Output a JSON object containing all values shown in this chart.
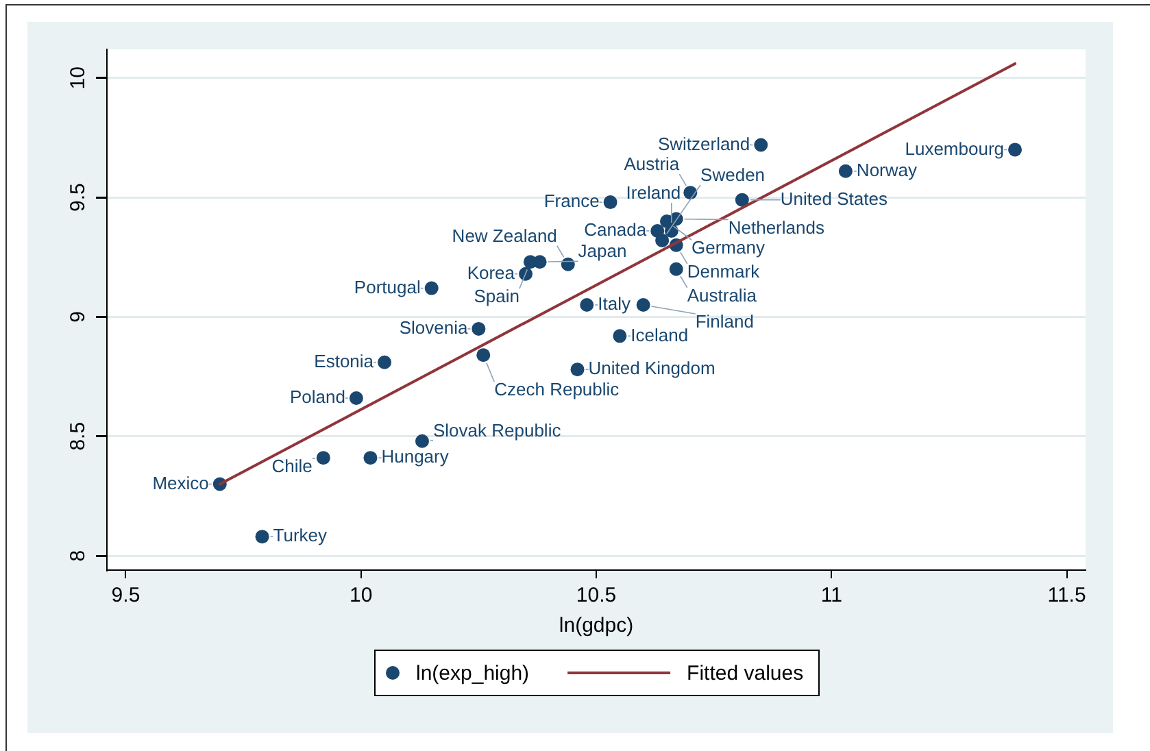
{
  "chart_data": {
    "type": "scatter",
    "xlabel": "ln(gdpc)",
    "xlim": [
      9.46,
      11.54
    ],
    "xticks": [
      9.5,
      10,
      10.5,
      11,
      11.5
    ],
    "ylim": [
      7.94,
      10.12
    ],
    "yticks": [
      8,
      8.5,
      9,
      9.5,
      10
    ],
    "grid": "y",
    "legend": "bottom",
    "series": [
      {
        "name": "ln(exp_high)",
        "marker": "circle",
        "color": "#1a476f",
        "x": [
          9.7,
          9.79,
          9.92,
          10.02,
          9.99,
          10.05,
          10.13,
          10.15,
          10.25,
          10.26,
          10.35,
          10.36,
          10.38,
          10.44,
          10.46,
          10.48,
          10.53,
          10.55,
          10.6,
          10.63,
          10.64,
          10.65,
          10.66,
          10.67,
          10.67,
          10.67,
          10.7,
          10.81,
          10.85,
          11.03,
          11.39
        ],
        "values": [
          8.3,
          8.08,
          8.41,
          8.41,
          8.66,
          8.81,
          8.48,
          9.12,
          8.95,
          8.84,
          9.18,
          9.23,
          9.23,
          9.22,
          8.78,
          9.05,
          9.48,
          8.92,
          9.05,
          9.36,
          9.32,
          9.4,
          9.36,
          9.3,
          9.41,
          9.2,
          9.52,
          9.49,
          9.72,
          9.61,
          9.7
        ]
      },
      {
        "name": "Fitted values",
        "type": "line",
        "marker": "none",
        "color": "#90353b",
        "x": [
          9.7,
          11.39
        ],
        "values": [
          8.3,
          10.06
        ]
      }
    ],
    "annotations": [
      {
        "text": "Mexico",
        "x": 9.7,
        "y": 8.3
      },
      {
        "text": "Turkey",
        "x": 9.79,
        "y": 8.08
      },
      {
        "text": "Chile",
        "x": 9.92,
        "y": 8.41
      },
      {
        "text": "Hungary",
        "x": 10.02,
        "y": 8.41
      },
      {
        "text": "Poland",
        "x": 9.99,
        "y": 8.66
      },
      {
        "text": "Estonia",
        "x": 10.05,
        "y": 8.81
      },
      {
        "text": "Slovak Republic",
        "x": 10.13,
        "y": 8.48
      },
      {
        "text": "Portugal",
        "x": 10.15,
        "y": 9.12
      },
      {
        "text": "Slovenia",
        "x": 10.25,
        "y": 8.95
      },
      {
        "text": "Czech Republic",
        "x": 10.26,
        "y": 8.84
      },
      {
        "text": "Korea",
        "x": 10.35,
        "y": 9.18
      },
      {
        "text": "Spain",
        "x": 10.36,
        "y": 9.23
      },
      {
        "text": "Japan",
        "x": 10.38,
        "y": 9.23
      },
      {
        "text": "New Zealand",
        "x": 10.44,
        "y": 9.22
      },
      {
        "text": "United Kingdom",
        "x": 10.46,
        "y": 8.78
      },
      {
        "text": "Italy",
        "x": 10.48,
        "y": 9.05
      },
      {
        "text": "France",
        "x": 10.53,
        "y": 9.48
      },
      {
        "text": "Iceland",
        "x": 10.55,
        "y": 8.92
      },
      {
        "text": "Finland",
        "x": 10.6,
        "y": 9.05
      },
      {
        "text": "Canada",
        "x": 10.63,
        "y": 9.36
      },
      {
        "text": "Sweden",
        "x": 10.64,
        "y": 9.32
      },
      {
        "text": "Germany",
        "x": 10.65,
        "y": 9.4
      },
      {
        "text": "Ireland",
        "x": 10.66,
        "y": 9.36
      },
      {
        "text": "Denmark",
        "x": 10.67,
        "y": 9.3
      },
      {
        "text": "Netherlands",
        "x": 10.67,
        "y": 9.41
      },
      {
        "text": "Australia",
        "x": 10.67,
        "y": 9.2
      },
      {
        "text": "Austria",
        "x": 10.7,
        "y": 9.52
      },
      {
        "text": "United States",
        "x": 10.81,
        "y": 9.49
      },
      {
        "text": "Switzerland",
        "x": 10.85,
        "y": 9.72
      },
      {
        "text": "Norway",
        "x": 11.03,
        "y": 9.61
      },
      {
        "text": "Luxembourg",
        "x": 11.39,
        "y": 9.7
      }
    ]
  }
}
